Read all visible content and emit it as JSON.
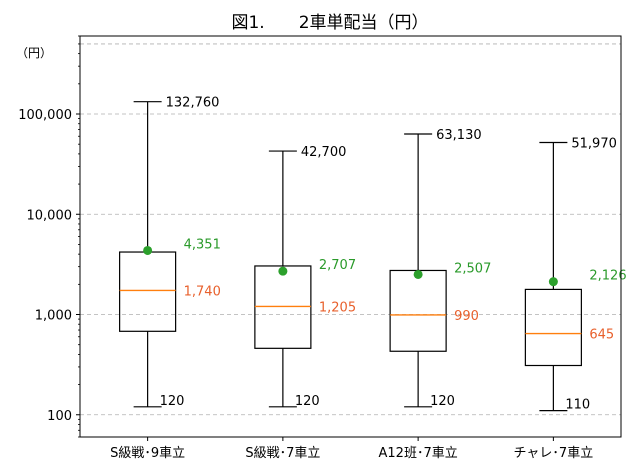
{
  "chart_data": {
    "type": "box",
    "title": "図1.　　2車単配当（円）",
    "ylabel": "（円）",
    "yscale": "log",
    "ylim": [
      60,
      600000
    ],
    "grid": "y-major-dashed",
    "yticks": [
      100,
      1000,
      10000,
      100000
    ],
    "ytick_labels": [
      "100",
      "1,000",
      "10,000",
      "100,000"
    ],
    "categories": [
      "S級戦･9車立",
      "S級戦･7車立",
      "A12班･7車立",
      "チャレ･7車立"
    ],
    "series": [
      {
        "min": 120,
        "q1": 680,
        "median": 1740,
        "q3": 4200,
        "max": 132760,
        "mean": 4351,
        "min_label": "120",
        "max_label": "132,760",
        "median_label": "1,740",
        "mean_label": "4,351"
      },
      {
        "min": 120,
        "q1": 460,
        "median": 1205,
        "q3": 3050,
        "max": 42700,
        "mean": 2707,
        "min_label": "120",
        "max_label": "42,700",
        "median_label": "1,205",
        "mean_label": "2,707"
      },
      {
        "min": 120,
        "q1": 430,
        "median": 990,
        "q3": 2750,
        "max": 63130,
        "mean": 2507,
        "min_label": "120",
        "max_label": "63,130",
        "median_label": "990",
        "mean_label": "2,507"
      },
      {
        "min": 110,
        "q1": 310,
        "median": 645,
        "q3": 1780,
        "max": 51970,
        "mean": 2126,
        "min_label": "110",
        "max_label": "51,970",
        "median_label": "645",
        "mean_label": "2,126"
      }
    ],
    "colors": {
      "box": "#000000",
      "median": "#ff7f0e",
      "mean": "#2ca02c",
      "median_text": "#e8602c",
      "mean_text": "#2a9a2a",
      "grid": "#b0b0b0"
    }
  }
}
